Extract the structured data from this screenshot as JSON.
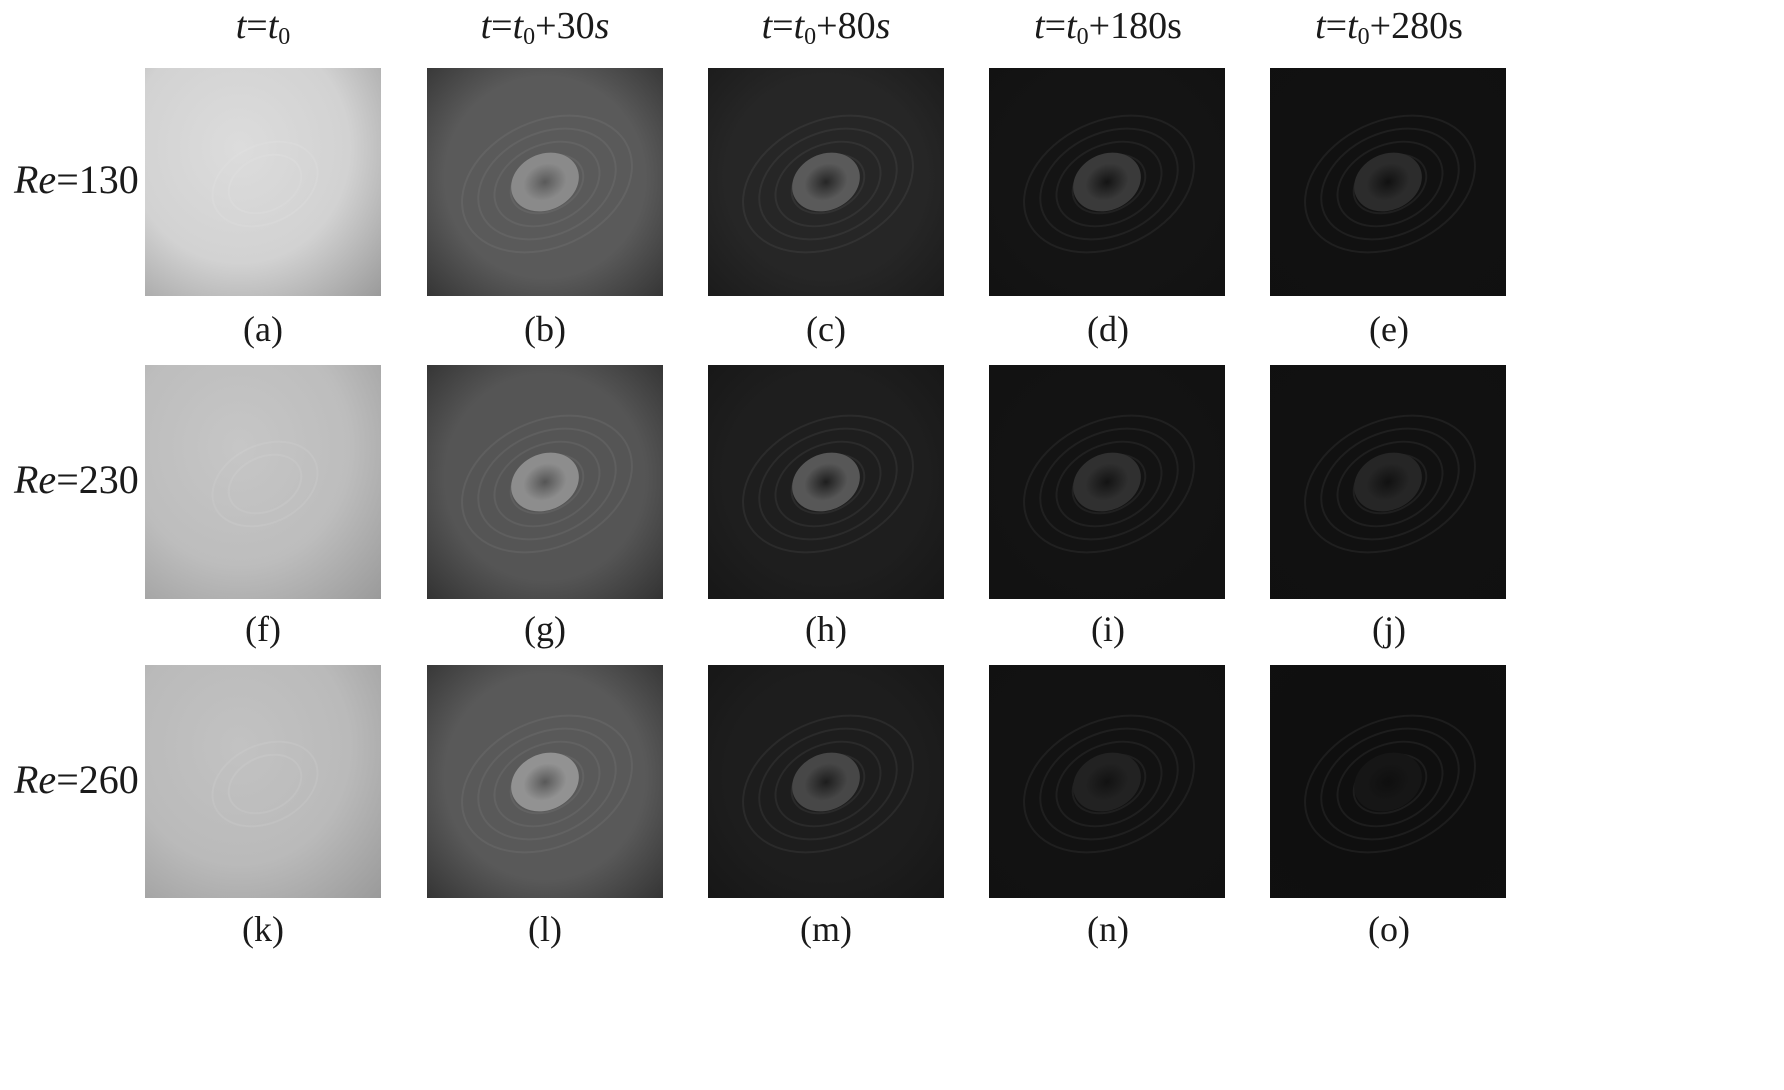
{
  "columns": [
    {
      "var": "t",
      "eq": "=",
      "base": "t",
      "sub": "0",
      "suffix": ""
    },
    {
      "var": "t",
      "eq": "=",
      "base": "t",
      "sub": "0",
      "suffix": "+30",
      "unit": "s",
      "unit_italic": true
    },
    {
      "var": "t",
      "eq": "=",
      "base": "t",
      "sub": "0",
      "suffix": "+80",
      "unit": "s",
      "unit_italic": true
    },
    {
      "var": "t",
      "eq": "=",
      "base": "t",
      "sub": "0",
      "suffix": "+180",
      "unit": "s",
      "unit_italic": false
    },
    {
      "var": "t",
      "eq": "=",
      "base": "t",
      "sub": "0",
      "suffix": "+280",
      "unit": "s",
      "unit_italic": false
    }
  ],
  "rows": [
    {
      "var": "Re",
      "value": "=130",
      "captions": [
        "(a)",
        "(b)",
        "(c)",
        "(d)",
        "(e)"
      ]
    },
    {
      "var": "Re",
      "value": "=230",
      "captions": [
        "(f)",
        "(g)",
        "(h)",
        "(i)",
        "(j)"
      ]
    },
    {
      "var": "Re",
      "value": "=260",
      "captions": [
        "(k)",
        "(l)",
        "(m)",
        "(n)",
        "(o)"
      ]
    }
  ],
  "panel_tones": [
    [
      "#d2d2d2",
      "#5a5a5a",
      "#262626",
      "#141414",
      "#111111"
    ],
    [
      "#bdbdbd",
      "#555555",
      "#1e1e1e",
      "#131313",
      "#111111"
    ],
    [
      "#bababa",
      "#595959",
      "#1d1d1d",
      "#121212",
      "#0f0f0f"
    ]
  ],
  "core_tones": [
    [
      "#dcdcdc",
      "#8a8a8a",
      "#5a5a5a",
      "#3a3a3a",
      "#2c2c2c"
    ],
    [
      "#c6c6c6",
      "#8d8d8d",
      "#575757",
      "#303030",
      "#262626"
    ],
    [
      "#c2c2c2",
      "#929292",
      "#474747",
      "#222222",
      "#161616"
    ]
  ]
}
